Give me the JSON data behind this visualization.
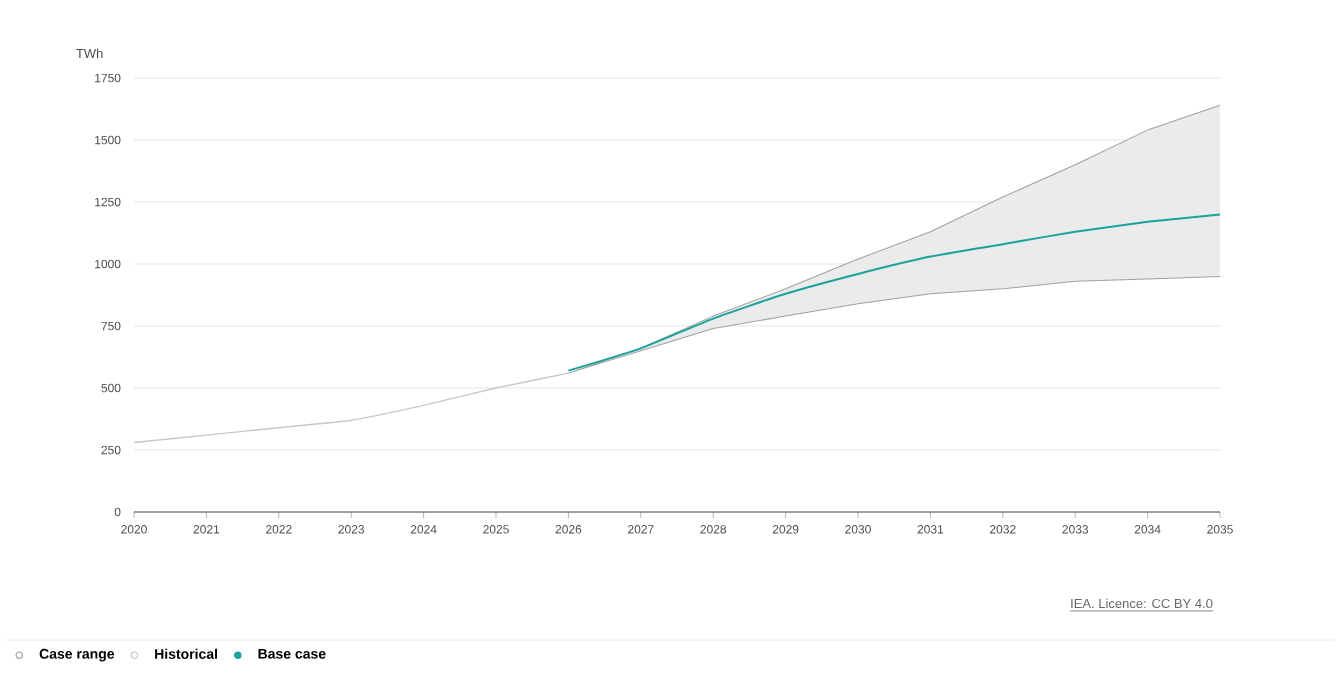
{
  "chart_data": {
    "type": "line",
    "ylabel": "TWh",
    "xlim": [
      2020,
      2035
    ],
    "xticks": [
      2020,
      2021,
      2022,
      2023,
      2024,
      2025,
      2026,
      2027,
      2028,
      2029,
      2030,
      2031,
      2032,
      2033,
      2034,
      2035
    ],
    "ylim": [
      0,
      1750
    ],
    "yticks": [
      0,
      250,
      500,
      750,
      1000,
      1250,
      1500,
      1750
    ],
    "grid": "y",
    "legend": "bottom left",
    "series": [
      {
        "name": "Case range",
        "color": "#a0a0a0",
        "x": [
          2026,
          2027,
          2028,
          2029,
          2030,
          2031,
          2032,
          2033,
          2034,
          2035
        ],
        "values": [
          null,
          null,
          null,
          null,
          null,
          null,
          null,
          null,
          null,
          null
        ],
        "lower": [
          560,
          650,
          740,
          790,
          840,
          880,
          900,
          930,
          940,
          950
        ],
        "upper": [
          560,
          660,
          790,
          900,
          1020,
          1130,
          1270,
          1400,
          1540,
          1640
        ]
      },
      {
        "name": "Historical",
        "color": "#c8c8c8",
        "x": [
          2020,
          2021,
          2022,
          2023,
          2024,
          2025,
          2026
        ],
        "values": [
          280,
          310,
          340,
          370,
          430,
          500,
          560
        ]
      },
      {
        "name": "Base case",
        "color": "#1aa39a",
        "x": [
          2026,
          2027,
          2028,
          2029,
          2030,
          2031,
          2032,
          2033,
          2034,
          2035
        ],
        "values": [
          570,
          660,
          780,
          880,
          960,
          1030,
          1080,
          1130,
          1170,
          1200
        ]
      }
    ],
    "annotations": [
      "IEA. Licence: CC BY 4.0"
    ]
  }
}
